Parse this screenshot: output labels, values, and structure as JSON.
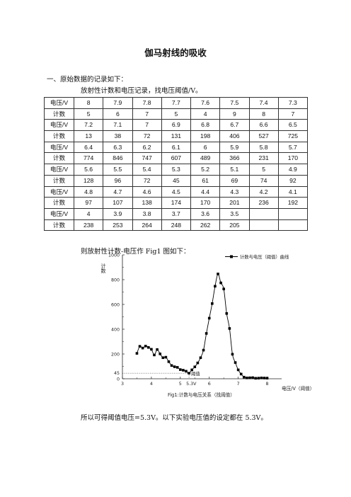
{
  "title": "伽马射线的吸收",
  "section_heading": "一、原始数据的记录如下：",
  "subheading": "放射性计数和电压记录，找电压阈值/V。",
  "table": {
    "rows": [
      [
        "电压/V",
        "8",
        "7.9",
        "7.8",
        "7.7",
        "7.6",
        "7.5",
        "7.4",
        "7.3"
      ],
      [
        "计数",
        "5",
        "6",
        "7",
        "5",
        "4",
        "9",
        "8",
        "7"
      ],
      [
        "电压/V",
        "7.2",
        "7.1",
        "7",
        "6.9",
        "6.8",
        "6.7",
        "6.6",
        "6.5"
      ],
      [
        "计数",
        "13",
        "38",
        "72",
        "131",
        "198",
        "406",
        "527",
        "725"
      ],
      [
        "电压/V",
        "6.4",
        "6.3",
        "6.2",
        "6.1",
        "6",
        "5.9",
        "5.8",
        "5.7"
      ],
      [
        "计数",
        "774",
        "846",
        "747",
        "607",
        "489",
        "366",
        "231",
        "170"
      ],
      [
        "电压/V",
        "5.6",
        "5.5",
        "5.4",
        "5.3",
        "5.2",
        "5.1",
        "5",
        "4.9"
      ],
      [
        "计数",
        "128",
        "96",
        "72",
        "45",
        "61",
        "69",
        "74",
        "92"
      ],
      [
        "电压/V",
        "4.8",
        "4.7",
        "4.6",
        "4.5",
        "4.4",
        "4.3",
        "4.2",
        "4.1"
      ],
      [
        "计数",
        "97",
        "107",
        "138",
        "174",
        "170",
        "201",
        "236",
        "192"
      ],
      [
        "电压/V",
        "4",
        "3.9",
        "3.8",
        "3.7",
        "3.6",
        "3.5",
        "",
        ""
      ],
      [
        "计数",
        "238",
        "253",
        "264",
        "248",
        "262",
        "205",
        "",
        ""
      ]
    ]
  },
  "chart_intro": "则放射性计数-电压作 Fig1 图如下：",
  "chart_data": {
    "type": "line",
    "caption": "Fig1:计数与电压关系（找阈值）",
    "ylabel": "计数",
    "xlabel": "电压/V（阈值）",
    "legend": "计数与电压（阈值）曲线",
    "legend_position": "top-right",
    "xlim": [
      3,
      8.5
    ],
    "ylim": [
      0,
      1000
    ],
    "x_ticks": [
      "3",
      "4",
      "5",
      "6",
      "7",
      "8"
    ],
    "y_ticks": [
      "0",
      "200",
      "400",
      "600",
      "800",
      "1000"
    ],
    "threshold_label": "阈值",
    "threshold_x_label": "5.3V",
    "threshold_y_label": "45",
    "threshold": {
      "x": 5.3,
      "y": 45
    },
    "x": [
      8,
      7.9,
      7.8,
      7.7,
      7.6,
      7.5,
      7.4,
      7.3,
      7.2,
      7.1,
      7,
      6.9,
      6.8,
      6.7,
      6.6,
      6.5,
      6.4,
      6.3,
      6.2,
      6.1,
      6,
      5.9,
      5.8,
      5.7,
      5.6,
      5.5,
      5.4,
      5.3,
      5.2,
      5.1,
      5,
      4.9,
      4.8,
      4.7,
      4.6,
      4.5,
      4.4,
      4.3,
      4.2,
      4.1,
      4,
      3.9,
      3.8,
      3.7,
      3.6,
      3.5
    ],
    "y": [
      5,
      6,
      7,
      5,
      4,
      9,
      8,
      7,
      13,
      38,
      72,
      131,
      198,
      406,
      527,
      725,
      774,
      846,
      747,
      607,
      489,
      366,
      231,
      170,
      128,
      96,
      72,
      45,
      61,
      69,
      74,
      92,
      97,
      107,
      138,
      174,
      170,
      201,
      236,
      192,
      238,
      253,
      264,
      248,
      262,
      205
    ],
    "series_color": "#000000"
  },
  "conclusion": "所以可得阈值电压=5.3V。以下实验电压值的设定都在 5.3V。"
}
